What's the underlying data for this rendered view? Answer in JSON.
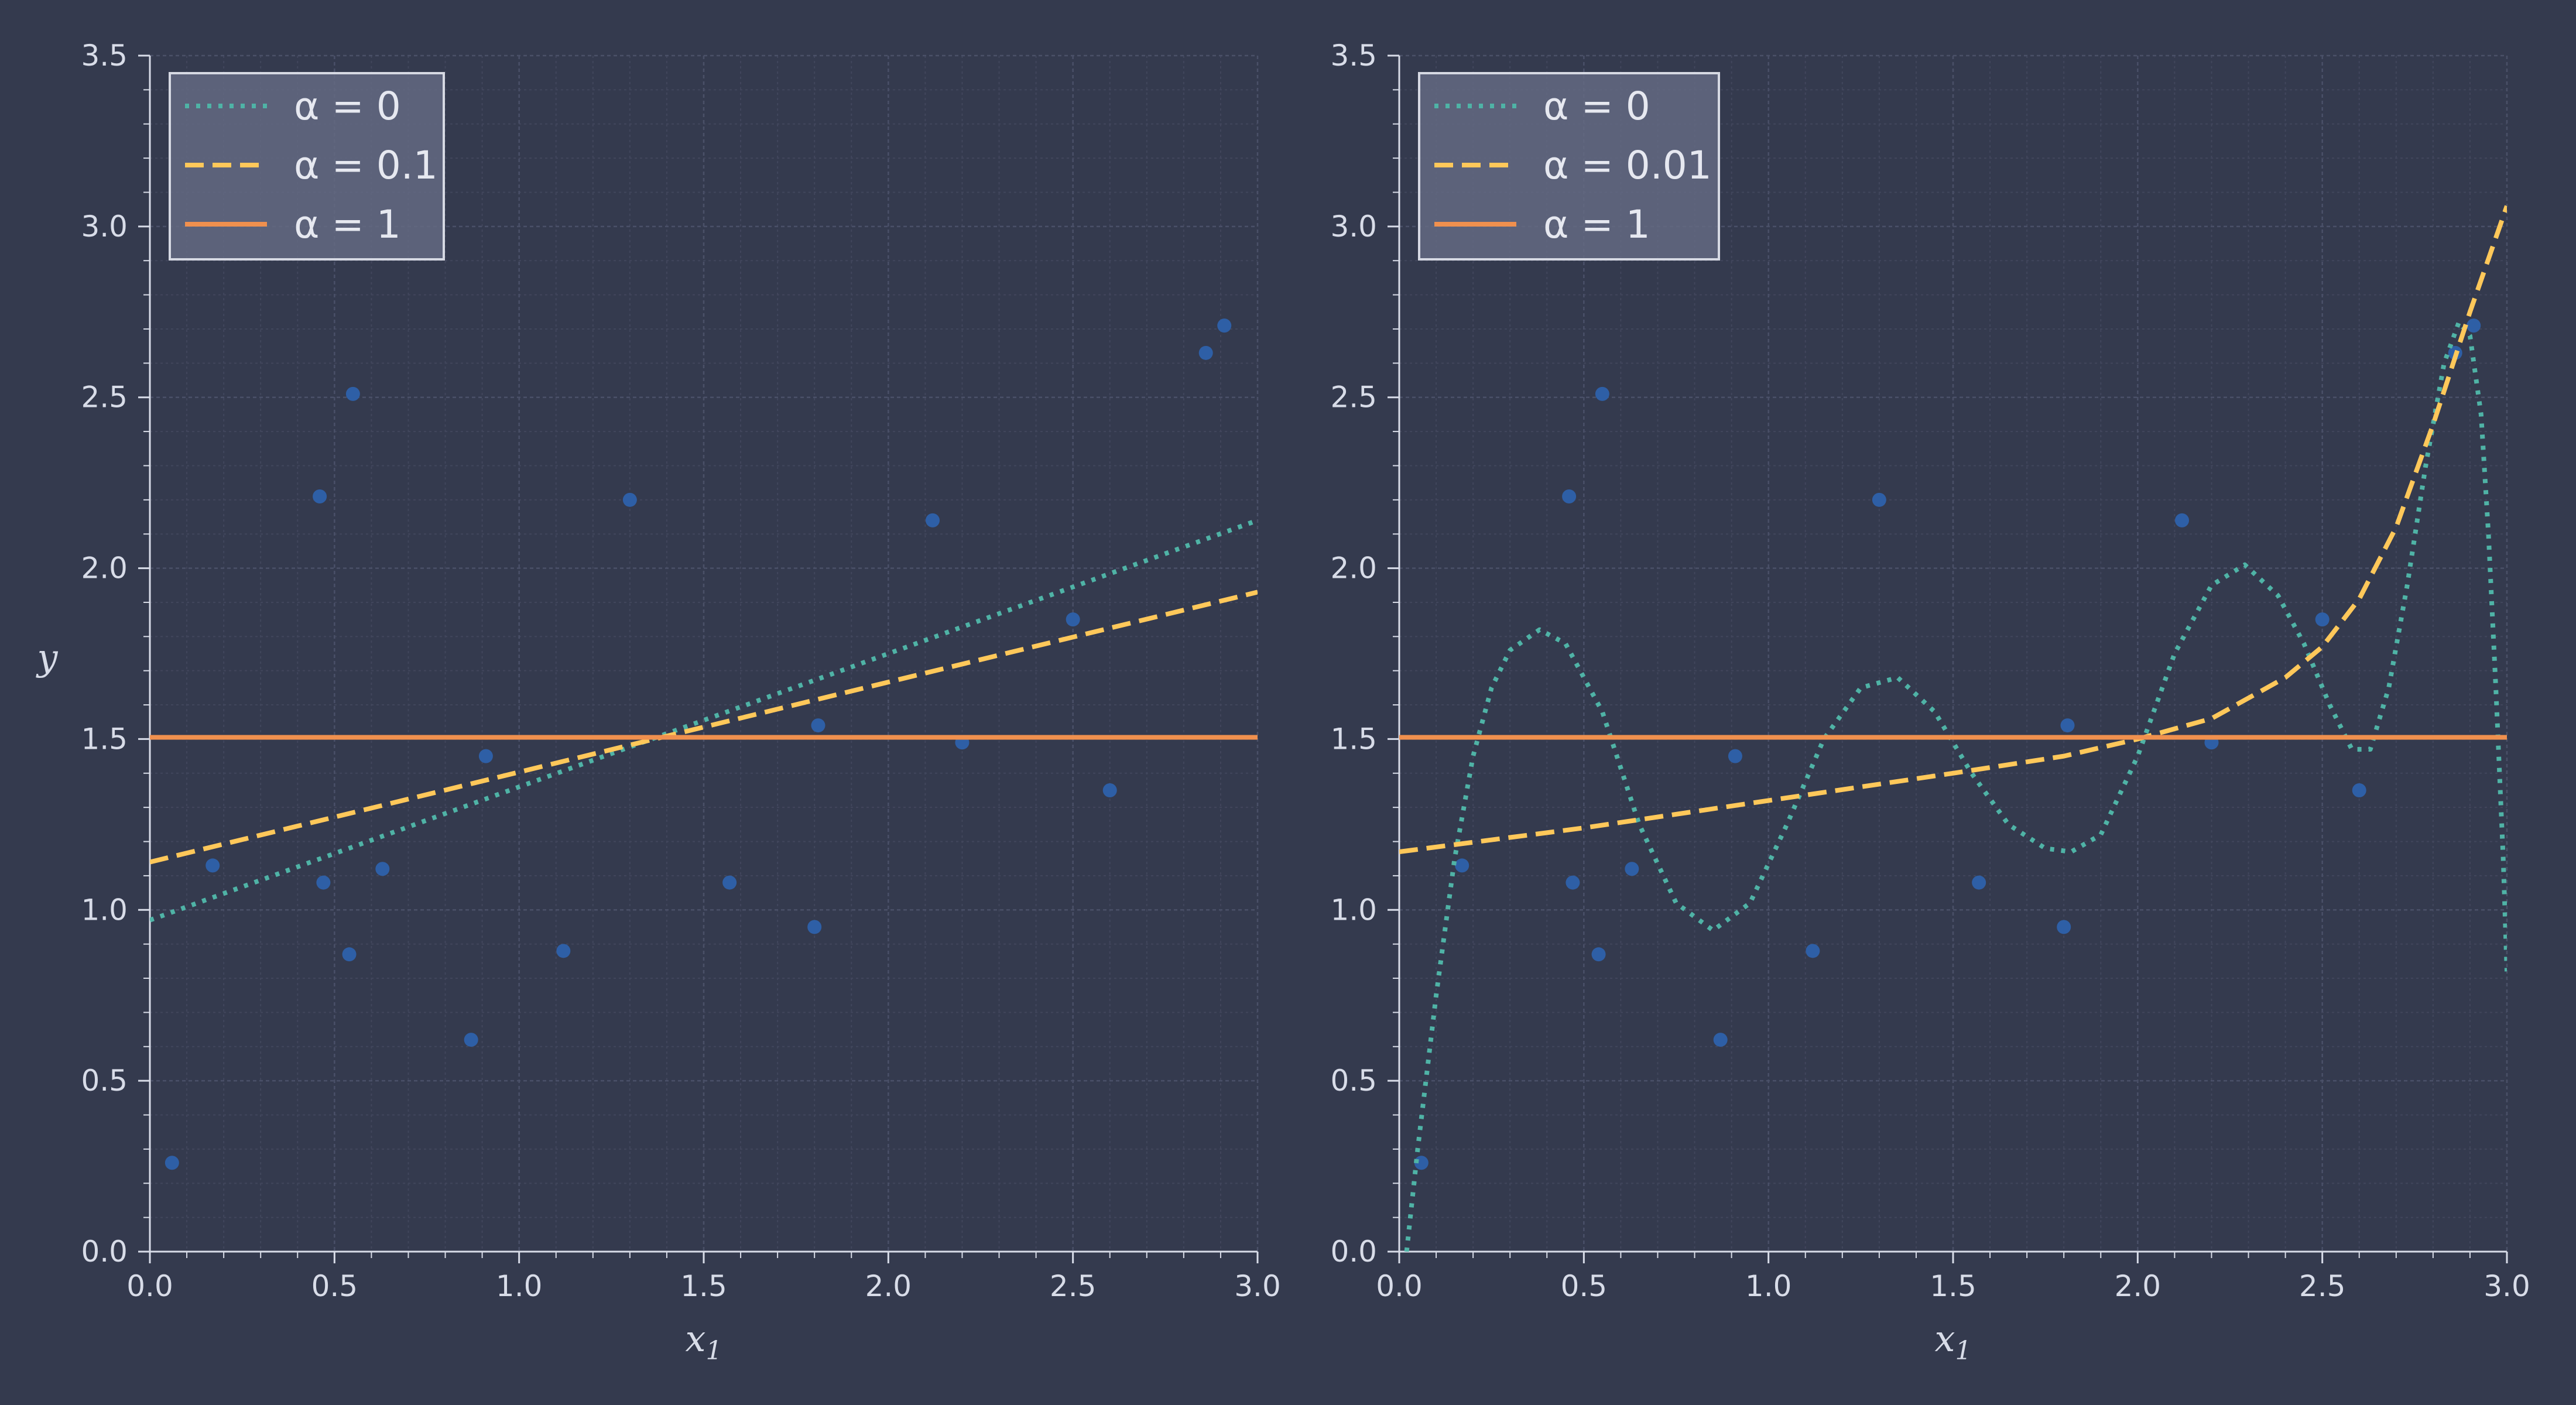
{
  "colors": {
    "background": "#343a4e",
    "grid_major": "#4a5068",
    "grid_minor": "#41465c",
    "spine": "#d8dce8",
    "points": "#2e5fa6",
    "alpha0": "#4fb3a6",
    "alpha_mid": "#ffc85a",
    "alpha1": "#f0904e",
    "legend_bg": "#646a83",
    "legend_border": "#d6d9e3"
  },
  "chart_data": [
    {
      "type": "line",
      "name": "left-panel",
      "xlabel": "x1",
      "ylabel": "y",
      "xlim": [
        0,
        3
      ],
      "ylim": [
        0,
        3.5
      ],
      "x_ticks": [
        "0.0",
        "0.5",
        "1.0",
        "1.5",
        "2.0",
        "2.5",
        "3.0"
      ],
      "y_ticks": [
        "0.0",
        "0.5",
        "1.0",
        "1.5",
        "2.0",
        "2.5",
        "3.0",
        "3.5"
      ],
      "grid": true,
      "legend_position": "top-left",
      "scatter": {
        "x": [
          0.06,
          0.17,
          0.46,
          0.47,
          0.54,
          0.55,
          0.63,
          0.87,
          0.91,
          1.12,
          1.3,
          1.57,
          1.8,
          1.81,
          2.12,
          2.2,
          2.5,
          2.6,
          2.86,
          2.91
        ],
        "y": [
          0.26,
          1.13,
          2.21,
          1.08,
          0.87,
          2.51,
          1.12,
          0.62,
          1.45,
          0.88,
          2.2,
          1.08,
          0.95,
          1.54,
          2.14,
          1.49,
          1.85,
          1.35,
          2.63,
          2.71
        ]
      },
      "series": [
        {
          "name": "α = 0",
          "style": "dotted",
          "color_key": "alpha0",
          "x": [
            0,
            3
          ],
          "y": [
            0.97,
            2.14
          ]
        },
        {
          "name": "α = 0.1",
          "style": "dashed",
          "color_key": "alpha_mid",
          "x": [
            0,
            3
          ],
          "y": [
            1.14,
            1.93
          ]
        },
        {
          "name": "α = 1",
          "style": "solid",
          "color_key": "alpha1",
          "x": [
            0,
            3
          ],
          "y": [
            1.505,
            1.505
          ]
        }
      ]
    },
    {
      "type": "line",
      "name": "right-panel",
      "xlabel": "x1",
      "ylabel": "",
      "xlim": [
        0,
        3
      ],
      "ylim": [
        0,
        3.5
      ],
      "x_ticks": [
        "0.0",
        "0.5",
        "1.0",
        "1.5",
        "2.0",
        "2.5",
        "3.0"
      ],
      "y_ticks": [
        "0.0",
        "0.5",
        "1.0",
        "1.5",
        "2.0",
        "2.5",
        "3.0",
        "3.5"
      ],
      "grid": true,
      "legend_position": "top-left",
      "scatter": {
        "x": [
          0.06,
          0.17,
          0.46,
          0.47,
          0.54,
          0.55,
          0.63,
          0.87,
          0.91,
          1.12,
          1.3,
          1.57,
          1.8,
          1.81,
          2.12,
          2.2,
          2.5,
          2.6,
          2.86,
          2.91
        ],
        "y": [
          0.26,
          1.13,
          2.21,
          1.08,
          0.87,
          2.51,
          1.12,
          0.62,
          1.45,
          0.88,
          2.2,
          1.08,
          0.95,
          1.54,
          2.14,
          1.49,
          1.85,
          1.35,
          2.63,
          2.71
        ]
      },
      "series": [
        {
          "name": "α = 0",
          "style": "dotted",
          "color_key": "alpha0",
          "x": [
            0.02,
            0.05,
            0.1,
            0.15,
            0.2,
            0.25,
            0.3,
            0.38,
            0.45,
            0.55,
            0.65,
            0.75,
            0.85,
            0.95,
            1.05,
            1.15,
            1.25,
            1.35,
            1.45,
            1.55,
            1.65,
            1.75,
            1.82,
            1.9,
            2.0,
            2.1,
            2.2,
            2.29,
            2.38,
            2.45,
            2.52,
            2.58,
            2.63,
            2.68,
            2.73,
            2.78,
            2.83,
            2.87,
            2.9,
            2.93,
            2.95,
            2.97,
            2.99,
            3.0
          ],
          "y": [
            0.0,
            0.3,
            0.75,
            1.15,
            1.45,
            1.65,
            1.76,
            1.82,
            1.78,
            1.58,
            1.25,
            1.02,
            0.94,
            1.02,
            1.25,
            1.5,
            1.65,
            1.68,
            1.58,
            1.4,
            1.25,
            1.18,
            1.17,
            1.22,
            1.45,
            1.75,
            1.95,
            2.01,
            1.92,
            1.78,
            1.6,
            1.47,
            1.47,
            1.65,
            1.95,
            2.3,
            2.6,
            2.72,
            2.68,
            2.45,
            2.1,
            1.65,
            1.15,
            0.82
          ]
        },
        {
          "name": "α = 0.01",
          "style": "dashed",
          "color_key": "alpha_mid",
          "x": [
            0.0,
            0.5,
            1.0,
            1.5,
            1.8,
            2.0,
            2.2,
            2.4,
            2.5,
            2.6,
            2.7,
            2.8,
            2.9,
            3.0
          ],
          "y": [
            1.17,
            1.24,
            1.32,
            1.4,
            1.45,
            1.5,
            1.56,
            1.68,
            1.77,
            1.91,
            2.12,
            2.42,
            2.75,
            3.06
          ]
        },
        {
          "name": "α = 1",
          "style": "solid",
          "color_key": "alpha1",
          "x": [
            0,
            3
          ],
          "y": [
            1.505,
            1.505
          ]
        }
      ]
    }
  ]
}
